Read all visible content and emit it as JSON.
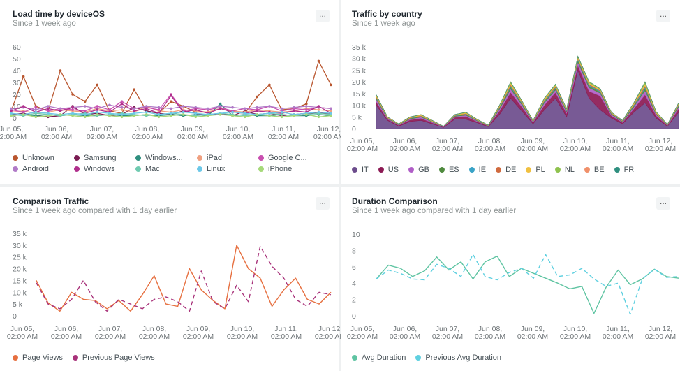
{
  "panels": [
    {
      "title": "Load time by deviceOS",
      "subtitle": "Since 1 week ago",
      "menu_label": "...",
      "chart_data": {
        "type": "line",
        "ylim": [
          0,
          60
        ],
        "yticks": [
          "60",
          "50",
          "40",
          "30",
          "20",
          "10",
          "0"
        ],
        "xticks": [
          [
            "Jun 05,",
            "02:00 AM"
          ],
          [
            "Jun 06,",
            "02:00 AM"
          ],
          [
            "Jun 07,",
            "02:00 AM"
          ],
          [
            "Jun 08,",
            "02:00 AM"
          ],
          [
            "Jun 09,",
            "02:00 AM"
          ],
          [
            "Jun 10,",
            "02:00 AM"
          ],
          [
            "Jun 11,",
            "02:00 AM"
          ],
          [
            "Jun 12,",
            "02:00 AM"
          ]
        ],
        "series": [
          {
            "name": "Unknown",
            "color": "#b9562f",
            "values": [
              6,
              35,
              10,
              6,
              40,
              20,
              14,
              28,
              6,
              4,
              24,
              6,
              4,
              14,
              10,
              5,
              5,
              8,
              6,
              4,
              18,
              28,
              7,
              8,
              12,
              48,
              28
            ]
          },
          {
            "name": "Samsung",
            "color": "#7a1c52",
            "values": [
              3,
              4,
              2,
              1,
              2,
              10,
              3,
              4,
              2,
              3,
              9,
              6,
              4,
              3,
              6,
              4,
              2,
              4,
              2,
              6,
              3,
              4,
              2,
              3,
              4,
              4,
              4
            ]
          },
          {
            "name": "Windows...",
            "color": "#2f8f7f",
            "values": [
              2,
              3,
              2,
              3,
              2,
              3,
              2,
              2,
              3,
              2,
              2,
              3,
              2,
              3,
              2,
              3,
              2,
              12,
              2,
              3,
              2,
              2,
              3,
              2,
              2,
              3,
              2
            ]
          },
          {
            "name": "iPad",
            "color": "#f0a080",
            "values": [
              5,
              6,
              4,
              5,
              7,
              6,
              5,
              8,
              6,
              7,
              5,
              10,
              6,
              5,
              7,
              6,
              5,
              8,
              6,
              5,
              7,
              6,
              5,
              6,
              8,
              7,
              6
            ]
          },
          {
            "name": "Google C...",
            "color": "#c94fb0",
            "values": [
              7,
              5,
              9,
              6,
              8,
              7,
              6,
              10,
              7,
              14,
              8,
              9,
              7,
              20,
              6,
              8,
              7,
              9,
              6,
              8,
              7,
              10,
              6,
              8,
              7,
              9,
              8
            ]
          },
          {
            "name": "Android",
            "color": "#b07ac7",
            "values": [
              8,
              9,
              7,
              10,
              8,
              9,
              10,
              8,
              11,
              9,
              8,
              10,
              9,
              8,
              10,
              9,
              8,
              10,
              9,
              8,
              9,
              10,
              8,
              9,
              10,
              9,
              8
            ]
          },
          {
            "name": "Windows",
            "color": "#b02f8c",
            "values": [
              6,
              10,
              5,
              8,
              6,
              9,
              4,
              7,
              5,
              12,
              6,
              8,
              4,
              19,
              5,
              7,
              4,
              8,
              5,
              4,
              6,
              5,
              4,
              6,
              5,
              10,
              4
            ]
          },
          {
            "name": "Mac",
            "color": "#6fcab0",
            "values": [
              3,
              2,
              4,
              3,
              2,
              3,
              4,
              2,
              3,
              4,
              3,
              2,
              3,
              4,
              3,
              2,
              3,
              4,
              3,
              2,
              3,
              4,
              3,
              2,
              3,
              4,
              3
            ]
          },
          {
            "name": "Linux",
            "color": "#6cc8e8",
            "values": [
              4,
              3,
              5,
              4,
              3,
              4,
              3,
              5,
              4,
              3,
              4,
              5,
              3,
              4,
              5,
              4,
              3,
              4,
              5,
              4,
              3,
              4,
              5,
              3,
              4,
              5,
              4
            ]
          },
          {
            "name": "iPhone",
            "color": "#a6d97a",
            "values": [
              2,
              3,
              1,
              2,
              3,
              2,
              1,
              3,
              2,
              1,
              2,
              3,
              1,
              2,
              3,
              1,
              2,
              3,
              2,
              1,
              3,
              2,
              1,
              2,
              3,
              1,
              2
            ]
          }
        ]
      }
    },
    {
      "title": "Traffic by country",
      "subtitle": "Since 1 week ago",
      "menu_label": "...",
      "chart_data": {
        "type": "area",
        "ylim": [
          0,
          35000
        ],
        "yticks": [
          "35 k",
          "30 k",
          "25 k",
          "20 k",
          "15 k",
          "10 k",
          "5 k",
          "0"
        ],
        "xticks": [
          [
            "Jun 05,",
            "02:00 AM"
          ],
          [
            "Jun 06,",
            "02:00 AM"
          ],
          [
            "Jun 07,",
            "02:00 AM"
          ],
          [
            "Jun 08,",
            "02:00 AM"
          ],
          [
            "Jun 09,",
            "02:00 AM"
          ],
          [
            "Jun 10,",
            "02:00 AM"
          ],
          [
            "Jun 11,",
            "02:00 AM"
          ],
          [
            "Jun 12,",
            "02:00 AM"
          ]
        ],
        "total_envelope": [
          14500,
          5000,
          2000,
          5000,
          6000,
          3500,
          1000,
          6000,
          7000,
          4000,
          1500,
          10000,
          20000,
          12000,
          3500,
          13000,
          19000,
          8500,
          31000,
          20000,
          17000,
          7000,
          3500,
          11000,
          20000,
          7000,
          1800,
          11000
        ],
        "series": [
          {
            "name": "IT",
            "color": "#6c4c8c",
            "values": [
              10000,
              3500,
              1000,
              3000,
              3500,
              2000,
              500,
              4000,
              4000,
              2500,
              800,
              6000,
              13000,
              7500,
              2000,
              8000,
              13000,
              5000,
              25000,
              13000,
              8000,
              4500,
              2000,
              7000,
              11000,
              4500,
              1000,
              7000
            ]
          },
          {
            "name": "US",
            "color": "#8c1a54",
            "values": [
              1500,
              500,
              400,
              700,
              900,
              500,
              200,
              800,
              1200,
              500,
              300,
              1500,
              2500,
              1800,
              600,
              2000,
              2500,
              1500,
              2000,
              3000,
              6000,
              1000,
              600,
              1500,
              3500,
              1000,
              300,
              1500
            ]
          },
          {
            "name": "GB",
            "color": "#b05ec7",
            "values": [
              1000,
              300,
              200,
              400,
              500,
              300,
              100,
              400,
              500,
              300,
              100,
              800,
              1500,
              900,
              300,
              1000,
              1100,
              700,
              1500,
              1500,
              1200,
              500,
              300,
              800,
              1800,
              500,
              150,
              800
            ]
          },
          {
            "name": "ES",
            "color": "#4f8a3e",
            "values": [
              500,
              200,
              100,
              300,
              300,
              200,
              50,
              200,
              400,
              200,
              80,
              500,
              900,
              500,
              150,
              600,
              700,
              400,
              800,
              800,
              600,
              300,
              200,
              500,
              1000,
              300,
              100,
              500
            ]
          },
          {
            "name": "IE",
            "color": "#3aa3c7",
            "values": [
              300,
              100,
              50,
              100,
              150,
              100,
              30,
              100,
              200,
              100,
              40,
              200,
              400,
              300,
              100,
              300,
              350,
              200,
              400,
              400,
              300,
              150,
              100,
              300,
              500,
              150,
              50,
              300
            ]
          },
          {
            "name": "DE",
            "color": "#d06a3e",
            "values": [
              400,
              150,
              80,
              150,
              200,
              100,
              40,
              150,
              200,
              120,
              60,
              300,
              500,
              300,
              120,
              350,
              400,
              250,
              300,
              400,
              300,
              200,
              100,
              300,
              600,
              200,
              80,
              300
            ]
          },
          {
            "name": "PL",
            "color": "#f0c040",
            "values": [
              500,
              200,
              100,
              200,
              300,
              200,
              50,
              200,
              300,
              150,
              60,
              400,
              600,
              400,
              130,
              400,
              500,
              250,
              500,
              500,
              400,
              200,
              100,
              400,
              800,
              300,
              60,
              300
            ]
          },
          {
            "name": "NL",
            "color": "#8fc24e",
            "values": [
              300,
              50,
              70,
              150,
              150,
              100,
              30,
              150,
              200,
              130,
              60,
              300,
              600,
              300,
              100,
              350,
              450,
              200,
              500,
              500,
              300,
              150,
              100,
              300,
              800,
              250,
              60,
              300
            ]
          },
          {
            "name": "BE",
            "color": "#f0906a",
            "values": [
              0,
              0,
              0,
              0,
              0,
              0,
              0,
              0,
              0,
              0,
              0,
              0,
              0,
              0,
              0,
              0,
              0,
              0,
              0,
              0,
              0,
              0,
              0,
              0,
              0,
              0,
              0,
              0
            ]
          },
          {
            "name": "FR",
            "color": "#2f8f7f",
            "values": [
              0,
              0,
              0,
              0,
              0,
              0,
              0,
              0,
              0,
              0,
              0,
              0,
              0,
              0,
              0,
              0,
              0,
              0,
              0,
              0,
              0,
              0,
              0,
              0,
              0,
              0,
              0,
              0
            ]
          }
        ]
      }
    },
    {
      "title": "Comparison Traffic",
      "subtitle": "Since 1 week ago compared with 1 day earlier",
      "menu_label": "...",
      "chart_data": {
        "type": "line",
        "ylim": [
          0,
          35000
        ],
        "yticks": [
          "35 k",
          "30 k",
          "25 k",
          "20 k",
          "15 k",
          "10 k",
          "5 k",
          "0"
        ],
        "xticks": [
          [
            "Jun 05,",
            "02:00 AM"
          ],
          [
            "Jun 06,",
            "02:00 AM"
          ],
          [
            "Jun 07,",
            "02:00 AM"
          ],
          [
            "Jun 08,",
            "02:00 AM"
          ],
          [
            "Jun 09,",
            "02:00 AM"
          ],
          [
            "Jun 10,",
            "02:00 AM"
          ],
          [
            "Jun 11,",
            "02:00 AM"
          ],
          [
            "Jun 12,",
            "02:00 AM"
          ]
        ],
        "series": [
          {
            "name": "Page Views",
            "color": "#e66f3f",
            "dashed": false,
            "values": [
              15000,
              5500,
              2000,
              10000,
              7000,
              6500,
              3000,
              6500,
              2000,
              9000,
              17000,
              5000,
              4000,
              20000,
              11000,
              6500,
              3000,
              30000,
              20000,
              16000,
              4000,
              11000,
              16000,
              7000,
              5000,
              10000
            ]
          },
          {
            "name": "Previous Page Views",
            "color": "#a8327a",
            "dashed": true,
            "values": [
              14000,
              5000,
              3000,
              7000,
              15000,
              6000,
              2000,
              7000,
              5000,
              3000,
              7000,
              8000,
              6000,
              2000,
              19000,
              6000,
              3000,
              13000,
              6000,
              29500,
              21000,
              16000,
              7000,
              4000,
              10000,
              9000
            ]
          }
        ]
      }
    },
    {
      "title": "Duration Comparison",
      "subtitle": "Since 1 week ago compared with 1 day earlier",
      "menu_label": "...",
      "chart_data": {
        "type": "line",
        "ylim": [
          0,
          10
        ],
        "yticks": [
          "10",
          "8",
          "6",
          "4",
          "2",
          "0"
        ],
        "xticks": [
          [
            "Jun 05,",
            "02:00 AM"
          ],
          [
            "Jun 06,",
            "02:00 AM"
          ],
          [
            "Jun 07,",
            "02:00 AM"
          ],
          [
            "Jun 08,",
            "02:00 AM"
          ],
          [
            "Jun 09,",
            "02:00 AM"
          ],
          [
            "Jun 10,",
            "02:00 AM"
          ],
          [
            "Jun 11,",
            "02:00 AM"
          ],
          [
            "Jun 12,",
            "02:00 AM"
          ]
        ],
        "series": [
          {
            "name": "Avg Duration",
            "color": "#5fc4a2",
            "dashed": false,
            "values": [
              4.5,
              6.2,
              5.8,
              4.8,
              5.5,
              7.2,
              5.6,
              6.6,
              4.5,
              6.6,
              7.3,
              4.8,
              5.8,
              5.2,
              4.6,
              4.0,
              3.3,
              3.6,
              0.3,
              3.5,
              5.6,
              3.8,
              4.5,
              5.7,
              4.8,
              4.6
            ]
          },
          {
            "name": "Previous Avg Duration",
            "color": "#5fd0e0",
            "dashed": true,
            "values": [
              4.5,
              5.6,
              5.2,
              4.5,
              4.4,
              6.3,
              5.8,
              4.8,
              7.5,
              4.8,
              4.4,
              5.3,
              5.8,
              4.6,
              7.5,
              4.8,
              5.0,
              5.8,
              4.5,
              3.6,
              4.0,
              0.2,
              4.5,
              5.7,
              4.7,
              4.8
            ]
          }
        ]
      }
    }
  ]
}
